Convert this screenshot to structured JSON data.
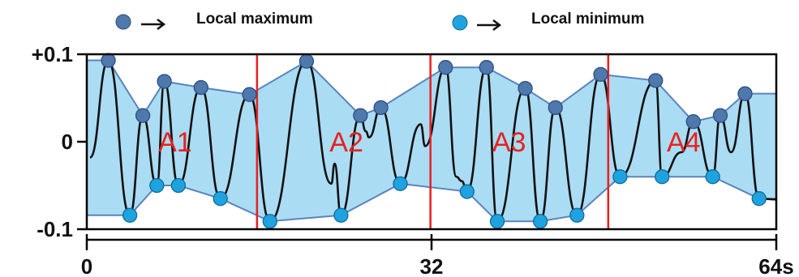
{
  "chart_data": {
    "type": "line",
    "title": "",
    "xlabel": "",
    "ylabel": "",
    "xlim": [
      0,
      64
    ],
    "ylim": [
      -0.1,
      0.1
    ],
    "x_tick_labels": [
      "0",
      "32",
      "64s"
    ],
    "x_tick_values": [
      0,
      32,
      64
    ],
    "y_tick_labels": [
      "+0.1",
      "0",
      "-0.1"
    ],
    "y_tick_values": [
      0.1,
      0,
      -0.1
    ],
    "colors": {
      "signal": "#111111",
      "envelope_fill": "#aadcf3",
      "envelope_line": "#5b83be",
      "local_max": "#4f78ad",
      "local_min": "#1fa3e0",
      "segment_divider": "#e8211f",
      "region_label": "#e8211f"
    },
    "legend": [
      {
        "marker": "local_max",
        "label": "Local maximum"
      },
      {
        "marker": "local_min",
        "label": "Local minimum"
      }
    ],
    "segment_dividers_x": [
      15.8,
      31.9,
      48.4
    ],
    "regions": [
      {
        "label": "A1",
        "x": 8.2,
        "y": 0.0
      },
      {
        "label": "A2",
        "x": 24.1,
        "y": 0.0
      },
      {
        "label": "A3",
        "x": 39.2,
        "y": 0.0
      },
      {
        "label": "A4",
        "x": 55.4,
        "y": 0.0
      }
    ],
    "local_maxima": [
      {
        "x": 0.0,
        "y": 0.093
      },
      {
        "x": 2.0,
        "y": 0.093
      },
      {
        "x": 5.2,
        "y": 0.03
      },
      {
        "x": 7.2,
        "y": 0.069
      },
      {
        "x": 10.6,
        "y": 0.062
      },
      {
        "x": 15.1,
        "y": 0.054
      },
      {
        "x": 20.4,
        "y": 0.092
      },
      {
        "x": 25.4,
        "y": 0.03
      },
      {
        "x": 27.3,
        "y": 0.039
      },
      {
        "x": 33.3,
        "y": 0.085
      },
      {
        "x": 37.1,
        "y": 0.085
      },
      {
        "x": 40.7,
        "y": 0.061
      },
      {
        "x": 43.5,
        "y": 0.039
      },
      {
        "x": 47.7,
        "y": 0.077
      },
      {
        "x": 52.8,
        "y": 0.07
      },
      {
        "x": 56.3,
        "y": 0.023
      },
      {
        "x": 58.8,
        "y": 0.03
      },
      {
        "x": 61.1,
        "y": 0.055
      },
      {
        "x": 64.0,
        "y": 0.055
      }
    ],
    "local_minima": [
      {
        "x": 0.0,
        "y": -0.084
      },
      {
        "x": 4.0,
        "y": -0.084
      },
      {
        "x": 6.5,
        "y": -0.05
      },
      {
        "x": 8.5,
        "y": -0.05
      },
      {
        "x": 12.4,
        "y": -0.065
      },
      {
        "x": 17.0,
        "y": -0.091
      },
      {
        "x": 23.6,
        "y": -0.084
      },
      {
        "x": 29.1,
        "y": -0.048
      },
      {
        "x": 35.3,
        "y": -0.057
      },
      {
        "x": 38.1,
        "y": -0.091
      },
      {
        "x": 42.1,
        "y": -0.091
      },
      {
        "x": 45.5,
        "y": -0.084
      },
      {
        "x": 49.5,
        "y": -0.04
      },
      {
        "x": 53.4,
        "y": -0.04
      },
      {
        "x": 58.1,
        "y": -0.04
      },
      {
        "x": 62.4,
        "y": -0.065
      },
      {
        "x": 64.0,
        "y": -0.065
      }
    ],
    "signal_extra": [
      {
        "x": 22.7,
        "y": -0.048
      },
      {
        "x": 23.0,
        "y": -0.025
      },
      {
        "x": 25.9,
        "y": 0.012
      },
      {
        "x": 26.2,
        "y": 0.005
      },
      {
        "x": 31.0,
        "y": 0.02
      },
      {
        "x": 31.4,
        "y": -0.005
      },
      {
        "x": 34.3,
        "y": -0.04
      },
      {
        "x": 34.8,
        "y": -0.045
      },
      {
        "x": 55.2,
        "y": -0.012
      },
      {
        "x": 59.8,
        "y": -0.012
      }
    ]
  }
}
